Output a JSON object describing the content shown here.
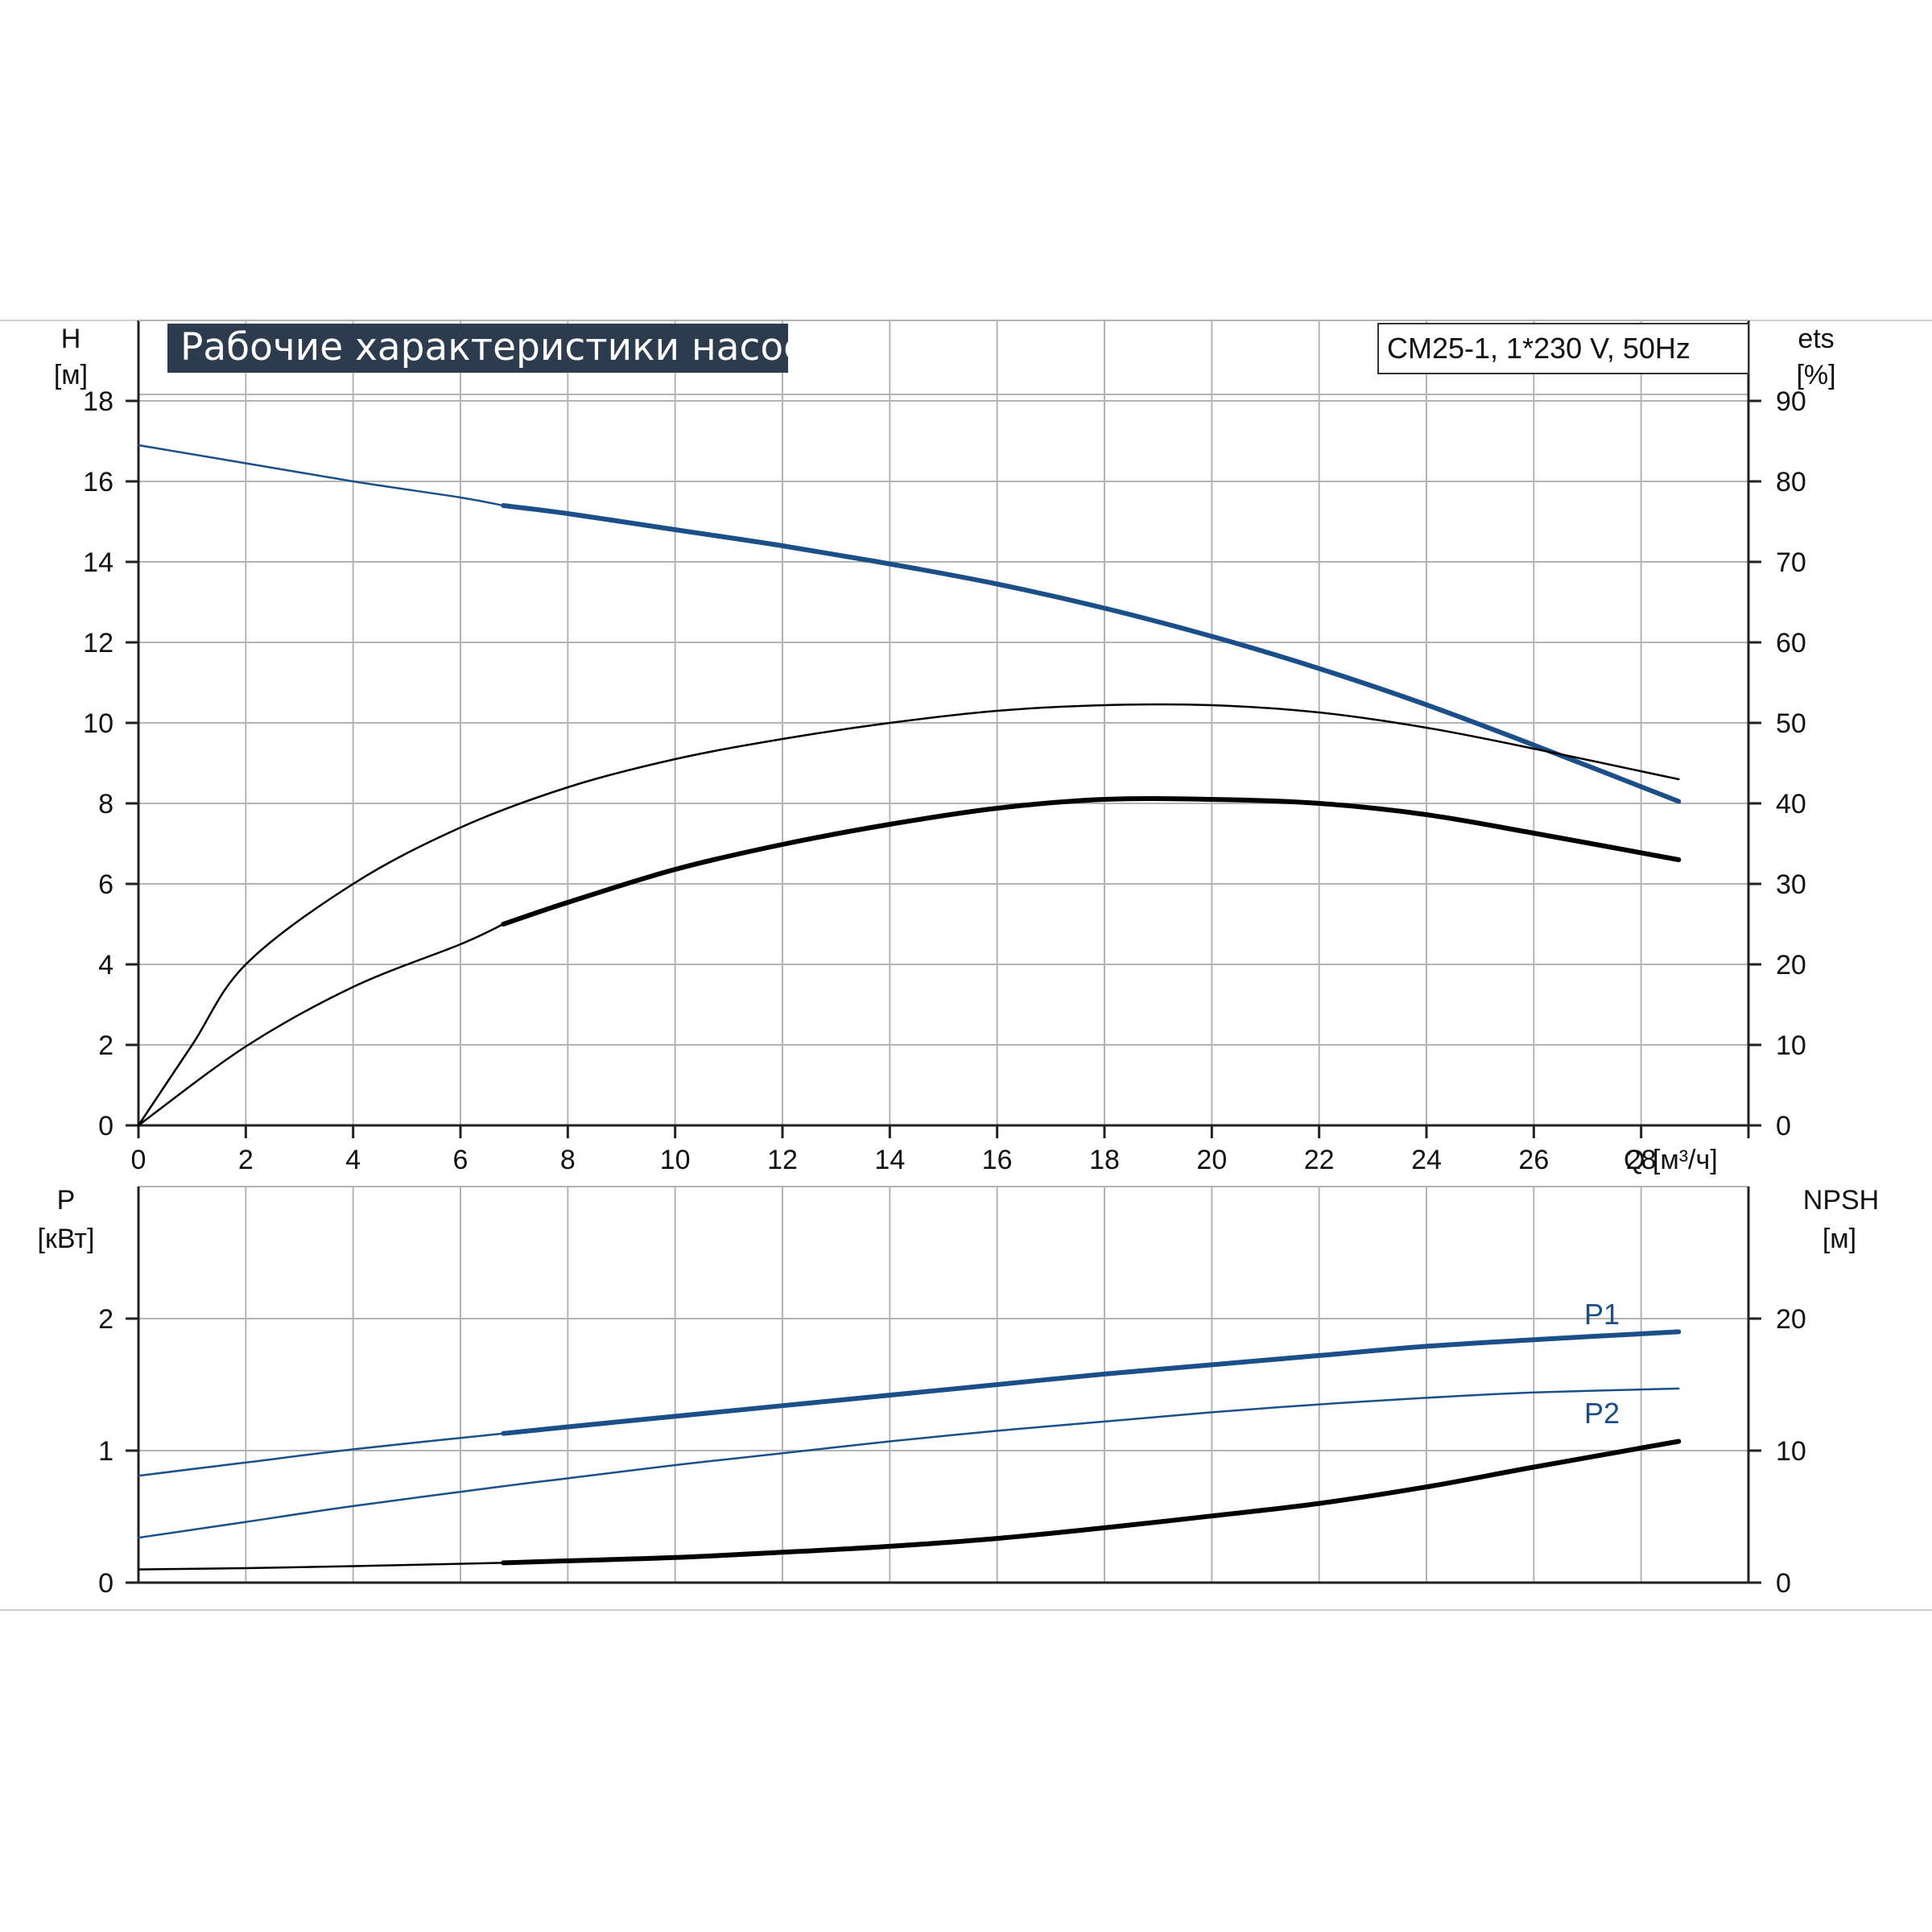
{
  "title": "Рабочие характеристики насоса",
  "model": "CM25-1, 1*230 V, 50Hz",
  "colors": {
    "blue": "#1b4f8a",
    "black": "#000000",
    "grid": "#b4b4b4",
    "title_bg": "#2d3b4e"
  },
  "chart_data": [
    {
      "type": "line",
      "panel": "top",
      "xlabel": "Q [м³/ч]",
      "ylabel": [
        "H",
        "[м]"
      ],
      "y2label": [
        "ets",
        "[%]"
      ],
      "xlim": [
        0,
        30
      ],
      "ylim": [
        0,
        20
      ],
      "y2lim": [
        0,
        100
      ],
      "xticks": [
        0,
        2,
        4,
        6,
        8,
        10,
        12,
        14,
        16,
        18,
        20,
        22,
        24,
        26,
        28
      ],
      "yticks": [
        0,
        2,
        4,
        6,
        8,
        10,
        12,
        14,
        16,
        18
      ],
      "y2ticks": [
        0,
        10,
        20,
        30,
        40,
        50,
        60,
        70,
        80,
        90
      ],
      "grid": true,
      "series": [
        {
          "axis": "y",
          "color": "blue",
          "thin_x": [
            0,
            2,
            4,
            6,
            6.8
          ],
          "thick_x": [
            6.8,
            8,
            10,
            12,
            14,
            16,
            18,
            20,
            22,
            24,
            26,
            28.7
          ],
          "x": [
            0,
            2,
            4,
            6,
            6.8,
            8,
            10,
            12,
            14,
            16,
            18,
            20,
            22,
            24,
            26,
            28.7
          ],
          "y": [
            16.9,
            16.45,
            16.0,
            15.6,
            15.4,
            15.2,
            14.8,
            14.4,
            13.95,
            13.45,
            12.85,
            12.15,
            11.35,
            10.45,
            9.45,
            8.05
          ]
        },
        {
          "axis": "y2",
          "color": "black",
          "thin": true,
          "x": [
            0,
            1,
            2,
            4,
            6,
            8,
            10,
            12,
            14,
            16,
            18,
            20,
            22,
            24,
            26,
            28.7
          ],
          "y": [
            0,
            10,
            20,
            30,
            37,
            42,
            45.5,
            48,
            50,
            51.5,
            52.2,
            52.2,
            51.3,
            49.4,
            46.8,
            43
          ]
        },
        {
          "axis": "y2",
          "color": "black",
          "thin_x": [
            0,
            2,
            4,
            6,
            6.8
          ],
          "thick_x": [
            6.8,
            8,
            10,
            12,
            14,
            16,
            18,
            20,
            22,
            24,
            26,
            28.7
          ],
          "x": [
            0,
            2,
            4,
            6,
            6.8,
            8,
            10,
            12,
            14,
            16,
            18,
            20,
            22,
            24,
            26,
            28.7
          ],
          "y": [
            0,
            9.8,
            17.2,
            22.5,
            25,
            27.7,
            31.8,
            34.9,
            37.4,
            39.4,
            40.5,
            40.5,
            40,
            38.6,
            36.3,
            33
          ]
        }
      ]
    },
    {
      "type": "line",
      "panel": "bottom",
      "ylabel": [
        "P",
        "[кВт]"
      ],
      "y2label": [
        "NPSH",
        "[м]"
      ],
      "xlim": [
        0,
        30
      ],
      "ylim": [
        0,
        3
      ],
      "y2lim": [
        0,
        30
      ],
      "yticks": [
        0,
        1,
        2
      ],
      "y2ticks": [
        0,
        10,
        20
      ],
      "grid": true,
      "series": [
        {
          "name": "P1",
          "axis": "y",
          "color": "blue",
          "thin_x": [
            0,
            6.8
          ],
          "thick_x": [
            6.8,
            28.7
          ],
          "x": [
            0,
            2,
            4,
            6.8,
            8,
            10,
            12,
            14,
            16,
            18,
            20,
            22,
            24,
            26,
            28.7
          ],
          "y": [
            0.81,
            0.91,
            1.01,
            1.13,
            1.18,
            1.26,
            1.34,
            1.42,
            1.5,
            1.58,
            1.65,
            1.72,
            1.79,
            1.84,
            1.9
          ]
        },
        {
          "name": "P2",
          "axis": "y",
          "color": "blue",
          "thin": true,
          "x": [
            0,
            2,
            4,
            6.8,
            8,
            10,
            12,
            14,
            16,
            18,
            20,
            22,
            24,
            26,
            28.7
          ],
          "y": [
            0.34,
            0.46,
            0.58,
            0.73,
            0.79,
            0.89,
            0.98,
            1.07,
            1.15,
            1.22,
            1.29,
            1.35,
            1.4,
            1.44,
            1.47
          ]
        },
        {
          "axis": "y2",
          "color": "black",
          "thin_x": [
            0,
            6.8
          ],
          "thick_x": [
            6.8,
            28.7
          ],
          "x": [
            0,
            2,
            4,
            6.8,
            8,
            10,
            12,
            14,
            16,
            18,
            20,
            22,
            24,
            26,
            28.7
          ],
          "y": [
            1.0,
            1.1,
            1.25,
            1.5,
            1.65,
            1.9,
            2.3,
            2.75,
            3.35,
            4.15,
            5.05,
            6.0,
            7.25,
            8.75,
            10.7
          ]
        }
      ]
    }
  ]
}
